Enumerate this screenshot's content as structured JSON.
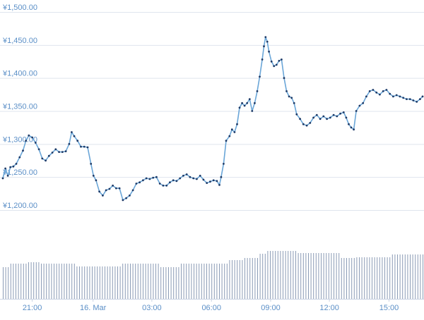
{
  "chart_data": {
    "type": "line",
    "title": "",
    "xlabel": "",
    "ylabel": "",
    "ylim": [
      1180,
      1500
    ],
    "y_ticks": [
      {
        "value": 1200,
        "label": "¥1,200.00"
      },
      {
        "value": 1250,
        "label": "¥1,250.00"
      },
      {
        "value": 1300,
        "label": "¥1,300.00"
      },
      {
        "value": 1350,
        "label": "¥1,350.00"
      },
      {
        "value": 1400,
        "label": "¥1,400.00"
      },
      {
        "value": 1450,
        "label": "¥1,450.00"
      },
      {
        "value": 1500,
        "label": "¥1,500.00"
      }
    ],
    "x_range": [
      0,
      1
    ],
    "x_ticks": [
      {
        "label": "21:00",
        "frac": 0.07
      },
      {
        "label": "16. Mar",
        "frac": 0.215
      },
      {
        "label": "03:00",
        "frac": 0.355
      },
      {
        "label": "06:00",
        "frac": 0.497
      },
      {
        "label": "09:00",
        "frac": 0.638
      },
      {
        "label": "12:00",
        "frac": 0.778
      },
      {
        "label": "15:00",
        "frac": 0.92
      }
    ],
    "series": [
      {
        "name": "",
        "color": "#6aa6d8",
        "points": [
          [
            0.0,
            1248
          ],
          [
            0.006,
            1263
          ],
          [
            0.012,
            1252
          ],
          [
            0.018,
            1265
          ],
          [
            0.025,
            1266
          ],
          [
            0.032,
            1270
          ],
          [
            0.04,
            1280
          ],
          [
            0.048,
            1290
          ],
          [
            0.055,
            1305
          ],
          [
            0.062,
            1313
          ],
          [
            0.07,
            1310
          ],
          [
            0.078,
            1302
          ],
          [
            0.086,
            1292
          ],
          [
            0.094,
            1278
          ],
          [
            0.102,
            1275
          ],
          [
            0.11,
            1282
          ],
          [
            0.118,
            1287
          ],
          [
            0.126,
            1292
          ],
          [
            0.134,
            1288
          ],
          [
            0.142,
            1288
          ],
          [
            0.15,
            1289
          ],
          [
            0.158,
            1300
          ],
          [
            0.164,
            1318
          ],
          [
            0.17,
            1312
          ],
          [
            0.178,
            1305
          ],
          [
            0.186,
            1296
          ],
          [
            0.194,
            1296
          ],
          [
            0.202,
            1295
          ],
          [
            0.21,
            1270
          ],
          [
            0.216,
            1252
          ],
          [
            0.222,
            1245
          ],
          [
            0.23,
            1228
          ],
          [
            0.238,
            1222
          ],
          [
            0.246,
            1230
          ],
          [
            0.254,
            1232
          ],
          [
            0.262,
            1237
          ],
          [
            0.27,
            1233
          ],
          [
            0.278,
            1233
          ],
          [
            0.286,
            1215
          ],
          [
            0.294,
            1218
          ],
          [
            0.302,
            1222
          ],
          [
            0.31,
            1230
          ],
          [
            0.318,
            1240
          ],
          [
            0.326,
            1242
          ],
          [
            0.334,
            1245
          ],
          [
            0.342,
            1248
          ],
          [
            0.35,
            1247
          ],
          [
            0.358,
            1249
          ],
          [
            0.366,
            1250
          ],
          [
            0.374,
            1240
          ],
          [
            0.382,
            1237
          ],
          [
            0.39,
            1237
          ],
          [
            0.398,
            1242
          ],
          [
            0.406,
            1245
          ],
          [
            0.414,
            1244
          ],
          [
            0.422,
            1248
          ],
          [
            0.43,
            1252
          ],
          [
            0.438,
            1254
          ],
          [
            0.446,
            1250
          ],
          [
            0.454,
            1248
          ],
          [
            0.462,
            1247
          ],
          [
            0.47,
            1252
          ],
          [
            0.478,
            1246
          ],
          [
            0.486,
            1241
          ],
          [
            0.494,
            1243
          ],
          [
            0.502,
            1245
          ],
          [
            0.51,
            1244
          ],
          [
            0.516,
            1238
          ],
          [
            0.52,
            1250
          ],
          [
            0.526,
            1270
          ],
          [
            0.532,
            1305
          ],
          [
            0.54,
            1312
          ],
          [
            0.546,
            1322
          ],
          [
            0.552,
            1318
          ],
          [
            0.558,
            1330
          ],
          [
            0.564,
            1355
          ],
          [
            0.57,
            1362
          ],
          [
            0.576,
            1358
          ],
          [
            0.582,
            1362
          ],
          [
            0.588,
            1368
          ],
          [
            0.594,
            1350
          ],
          [
            0.6,
            1362
          ],
          [
            0.606,
            1380
          ],
          [
            0.612,
            1402
          ],
          [
            0.618,
            1428
          ],
          [
            0.622,
            1448
          ],
          [
            0.626,
            1462
          ],
          [
            0.63,
            1455
          ],
          [
            0.634,
            1440
          ],
          [
            0.64,
            1425
          ],
          [
            0.646,
            1418
          ],
          [
            0.652,
            1420
          ],
          [
            0.658,
            1426
          ],
          [
            0.664,
            1428
          ],
          [
            0.67,
            1400
          ],
          [
            0.676,
            1380
          ],
          [
            0.682,
            1372
          ],
          [
            0.688,
            1370
          ],
          [
            0.694,
            1362
          ],
          [
            0.7,
            1345
          ],
          [
            0.708,
            1338
          ],
          [
            0.716,
            1330
          ],
          [
            0.724,
            1328
          ],
          [
            0.732,
            1332
          ],
          [
            0.74,
            1340
          ],
          [
            0.748,
            1344
          ],
          [
            0.756,
            1338
          ],
          [
            0.764,
            1342
          ],
          [
            0.772,
            1338
          ],
          [
            0.78,
            1340
          ],
          [
            0.788,
            1344
          ],
          [
            0.796,
            1342
          ],
          [
            0.804,
            1346
          ],
          [
            0.812,
            1348
          ],
          [
            0.818,
            1340
          ],
          [
            0.824,
            1330
          ],
          [
            0.83,
            1325
          ],
          [
            0.836,
            1322
          ],
          [
            0.842,
            1350
          ],
          [
            0.85,
            1358
          ],
          [
            0.858,
            1362
          ],
          [
            0.866,
            1372
          ],
          [
            0.874,
            1380
          ],
          [
            0.882,
            1382
          ],
          [
            0.89,
            1378
          ],
          [
            0.898,
            1375
          ],
          [
            0.906,
            1380
          ],
          [
            0.914,
            1382
          ],
          [
            0.922,
            1376
          ],
          [
            0.93,
            1372
          ],
          [
            0.938,
            1374
          ],
          [
            0.946,
            1372
          ],
          [
            0.954,
            1370
          ],
          [
            0.962,
            1368
          ],
          [
            0.97,
            1368
          ],
          [
            0.978,
            1366
          ],
          [
            0.986,
            1364
          ],
          [
            0.994,
            1368
          ],
          [
            1.0,
            1372
          ]
        ]
      }
    ],
    "volume": {
      "color": "#8a9bb5",
      "bars": [
        {
          "from": 0.0,
          "to": 0.018,
          "level": 0.45
        },
        {
          "from": 0.018,
          "to": 0.06,
          "level": 0.5
        },
        {
          "from": 0.06,
          "to": 0.09,
          "level": 0.52
        },
        {
          "from": 0.09,
          "to": 0.17,
          "level": 0.5
        },
        {
          "from": 0.17,
          "to": 0.28,
          "level": 0.46
        },
        {
          "from": 0.28,
          "to": 0.372,
          "level": 0.5
        },
        {
          "from": 0.372,
          "to": 0.42,
          "level": 0.45
        },
        {
          "from": 0.42,
          "to": 0.535,
          "level": 0.5
        },
        {
          "from": 0.535,
          "to": 0.57,
          "level": 0.55
        },
        {
          "from": 0.57,
          "to": 0.61,
          "level": 0.58
        },
        {
          "from": 0.61,
          "to": 0.625,
          "level": 0.64
        },
        {
          "from": 0.625,
          "to": 0.7,
          "level": 0.68
        },
        {
          "from": 0.7,
          "to": 0.805,
          "level": 0.65
        },
        {
          "from": 0.805,
          "to": 0.84,
          "level": 0.58
        },
        {
          "from": 0.84,
          "to": 0.925,
          "level": 0.59
        },
        {
          "from": 0.925,
          "to": 1.0,
          "level": 0.63
        }
      ]
    },
    "grid": true
  }
}
